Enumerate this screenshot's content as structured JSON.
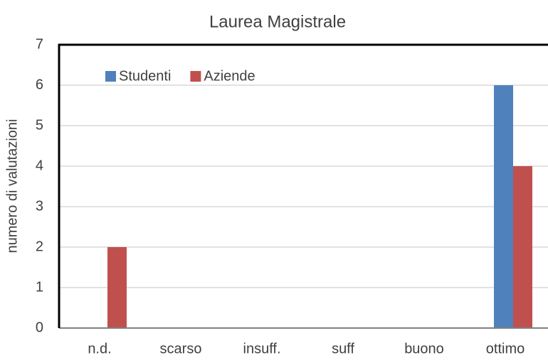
{
  "chart_data": {
    "type": "bar",
    "title": "Laurea Magistrale",
    "ylabel": "numero di valutazioni",
    "categories": [
      "n.d.",
      "scarso",
      "insuff.",
      "suff",
      "buono",
      "ottimo"
    ],
    "series": [
      {
        "name": "Studenti",
        "color": "#4f81bd",
        "values": [
          0,
          0,
          0,
          0,
          0,
          6
        ]
      },
      {
        "name": "Aziende",
        "color": "#c0504d",
        "values": [
          2,
          0,
          0,
          0,
          0,
          4
        ]
      }
    ],
    "ylim": [
      0,
      7
    ],
    "yticks": [
      0,
      1,
      2,
      3,
      4,
      5,
      6,
      7
    ],
    "grid": true,
    "legend": "top-left"
  }
}
